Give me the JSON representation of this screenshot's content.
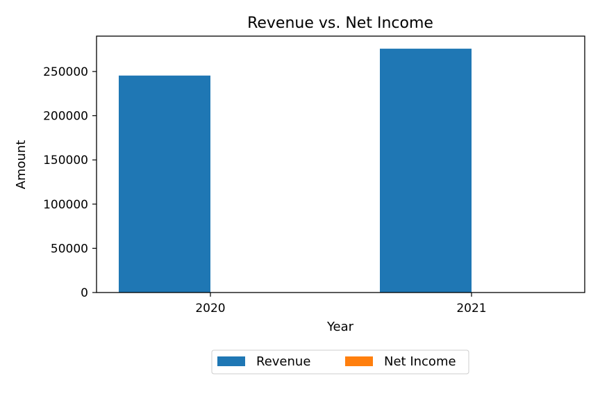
{
  "chart_data": {
    "type": "bar",
    "title": "Revenue vs. Net Income",
    "xlabel": "Year",
    "ylabel": "Amount",
    "categories": [
      "2020",
      "2021"
    ],
    "series": [
      {
        "name": "Revenue",
        "values": [
          245400,
          275800
        ],
        "color": "#1f77b4"
      },
      {
        "name": "Net Income",
        "values": [
          0,
          0
        ],
        "color": "#ff7f0e"
      }
    ],
    "ylim": [
      0,
      290000
    ],
    "yticks": [
      0,
      50000,
      100000,
      150000,
      200000,
      250000
    ],
    "ytick_labels": [
      "0",
      "50000",
      "100000",
      "150000",
      "200000",
      "250000"
    ],
    "grid": false,
    "legend_position": "bottom-center"
  }
}
